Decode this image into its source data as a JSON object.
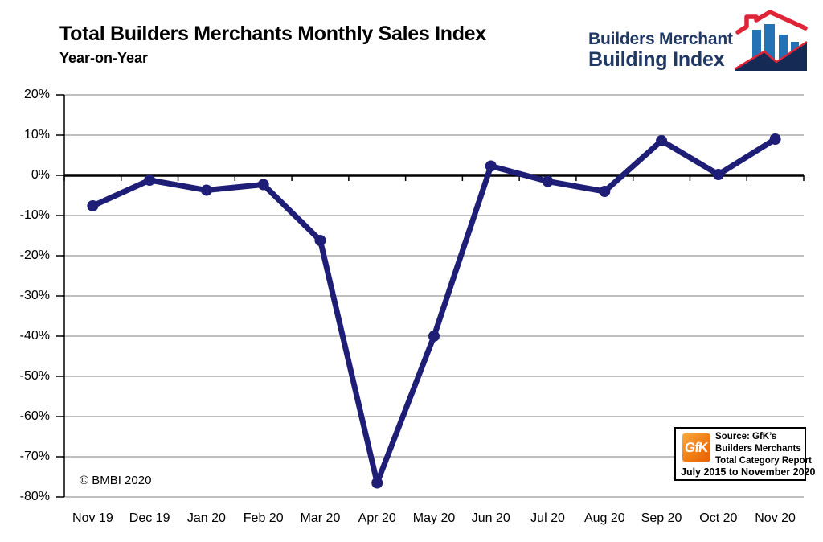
{
  "header": {
    "title": "Total Builders Merchants Monthly Sales Index",
    "subtitle": "Year-on-Year"
  },
  "logo": {
    "line1": "Builders Merchant",
    "line2": "Building Index",
    "navy": "#1F3864",
    "red": "#DE2436",
    "bar_blue": "#2272B5",
    "mountain_navy": "#152A55"
  },
  "chart_data": {
    "type": "line",
    "title": "Total Builders Merchants Monthly Sales Index",
    "subtitle": "Year-on-Year",
    "categories": [
      "Nov 19",
      "Dec 19",
      "Jan 20",
      "Feb 20",
      "Mar 20",
      "Apr 20",
      "May 20",
      "Jun 20",
      "Jul 20",
      "Aug 20",
      "Sep 20",
      "Oct 20",
      "Nov 20"
    ],
    "values": [
      -7.6,
      -1.2,
      -3.7,
      -2.3,
      -16.2,
      -76.5,
      -40.0,
      2.3,
      -1.5,
      -4.0,
      8.6,
      0.2,
      9.0
    ],
    "series_name": "Total Builders Merchants year-on-year sales index",
    "ylim": [
      -80,
      20
    ],
    "ytick_step": 10,
    "ytick_labels": [
      "20%",
      "10%",
      "0%",
      "-10%",
      "-20%",
      "-30%",
      "-40%",
      "-50%",
      "-60%",
      "-70%",
      "-80%"
    ],
    "grid": true,
    "grid_color": "#808080",
    "zero_line_color": "#000000",
    "axis_color": "#000000",
    "line_color": "#1E1E76",
    "marker": "circle",
    "legend": "none",
    "xlabel": "",
    "ylabel": ""
  },
  "annotations": {
    "copyright": "© BMBI 2020"
  },
  "source_box": {
    "logo_text": "GfK",
    "line1_bold": "Source:",
    "line1_rest": " GfK’s",
    "line2": "Builders Merchants",
    "line3": "Total Category Report",
    "line4": "July 2015 to November 2020"
  }
}
